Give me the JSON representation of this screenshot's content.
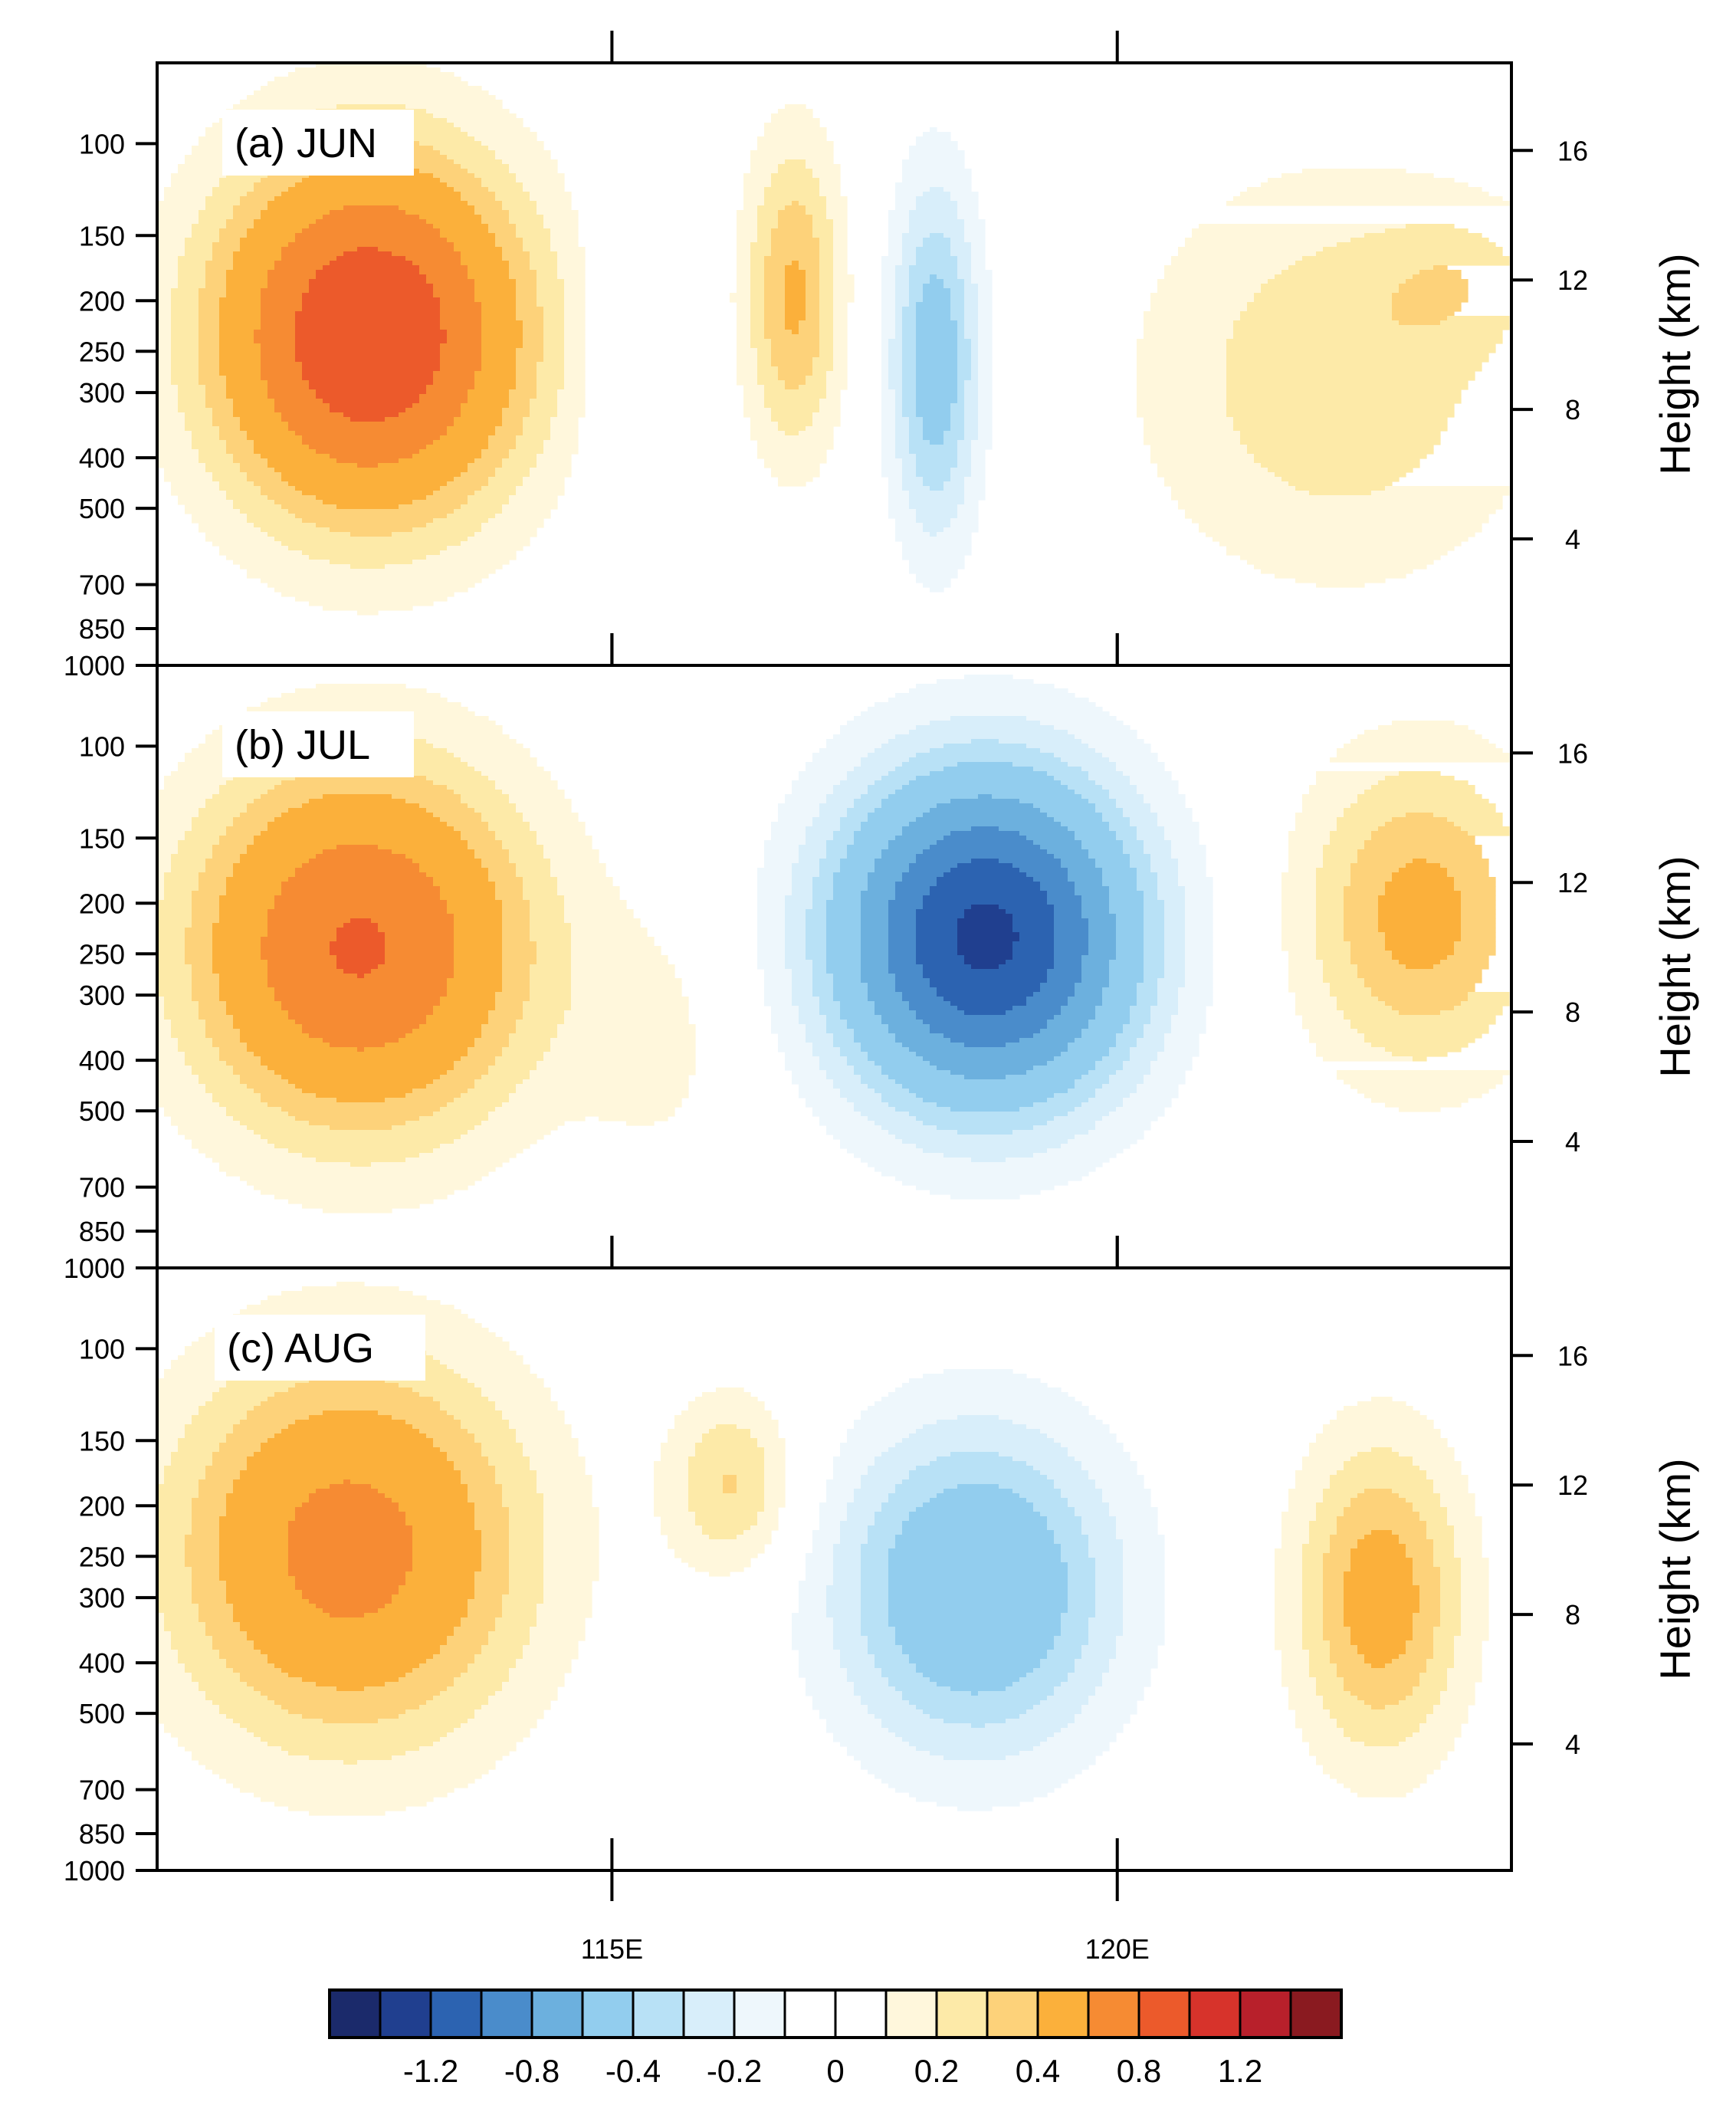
{
  "chart_data": {
    "type": "contour",
    "x_range": [
      110.5,
      123.9
    ],
    "x_ticks": [
      {
        "value": 115,
        "label": "115E"
      },
      {
        "value": 120,
        "label": "120E"
      }
    ],
    "pressure_ticks": [
      {
        "value": 100,
        "label": "100"
      },
      {
        "value": 150,
        "label": "150"
      },
      {
        "value": 200,
        "label": "200"
      },
      {
        "value": 250,
        "label": "250"
      },
      {
        "value": 300,
        "label": "300"
      },
      {
        "value": 400,
        "label": "400"
      },
      {
        "value": 500,
        "label": "500"
      },
      {
        "value": 700,
        "label": "700"
      },
      {
        "value": 850,
        "label": "850"
      },
      {
        "value": 1000,
        "label": "1000"
      }
    ],
    "height_ticks": [
      {
        "value": 4,
        "label": "4"
      },
      {
        "value": 8,
        "label": "8"
      },
      {
        "value": 12,
        "label": "12"
      },
      {
        "value": 16,
        "label": "16"
      }
    ],
    "right_axis_label": "Height (km)",
    "contour_levels": [
      -1.4,
      -1.2,
      -1.0,
      -0.8,
      -0.6,
      -0.4,
      -0.3,
      -0.2,
      -0.1,
      0,
      0.1,
      0.2,
      0.3,
      0.4,
      0.6,
      0.8,
      1.0,
      1.2,
      1.4
    ],
    "colors": [
      "#1b2a6b",
      "#203f8f",
      "#2c63b1",
      "#4a8ccb",
      "#6cb0de",
      "#92cdee",
      "#b8e1f6",
      "#d8eefa",
      "#eef7fc",
      "#ffffff",
      "#ffffff",
      "#fff7dc",
      "#fdeaa8",
      "#fdd27a",
      "#fbb03b",
      "#f68b33",
      "#ec5a2b",
      "#d7332b",
      "#b8202b",
      "#8a1a20"
    ],
    "colorbar": {
      "tick_labels": [
        "-1.2",
        "-0.8",
        "-0.4",
        "-0.2",
        "0",
        "0.2",
        "0.4",
        "0.8",
        "1.2"
      ]
    },
    "panels": [
      {
        "label": "(a) JUN",
        "features": [
          {
            "lon": 112.6,
            "height_km": 10.3,
            "amplitude": 1.0,
            "lon_sigma": 1.1,
            "height_sigma": 4.0
          },
          {
            "lon": 116.8,
            "height_km": 11.5,
            "amplitude": 0.42,
            "lon_sigma": 0.35,
            "height_sigma": 3.5
          },
          {
            "lon": 118.2,
            "height_km": 9.5,
            "amplitude": -0.5,
            "lon_sigma": 0.33,
            "height_sigma": 4.0
          },
          {
            "lon": 115.2,
            "height_km": 10.0,
            "amplitude": -0.15,
            "lon_sigma": 0.3,
            "height_sigma": 4.5
          },
          {
            "lon": 122.2,
            "height_km": 9.0,
            "amplitude": 0.28,
            "lon_sigma": 1.4,
            "height_sigma": 4.5
          },
          {
            "lon": 123.4,
            "height_km": 12.0,
            "amplitude": 0.15,
            "lon_sigma": 0.6,
            "height_sigma": 1.5
          }
        ]
      },
      {
        "label": "(b) JUL",
        "features": [
          {
            "lon": 112.5,
            "height_km": 10.0,
            "amplitude": 0.82,
            "lon_sigma": 1.2,
            "height_sigma": 4.0
          },
          {
            "lon": 118.7,
            "height_km": 10.3,
            "amplitude": -1.25,
            "lon_sigma": 1.05,
            "height_sigma": 3.6
          },
          {
            "lon": 123.0,
            "height_km": 11.0,
            "amplitude": 0.45,
            "lon_sigma": 0.85,
            "height_sigma": 3.5
          },
          {
            "lon": 115.5,
            "height_km": 7.0,
            "amplitude": 0.12,
            "lon_sigma": 0.6,
            "height_sigma": 3.0
          }
        ]
      },
      {
        "label": "(c) AUG",
        "features": [
          {
            "lon": 112.4,
            "height_km": 10.0,
            "amplitude": 0.68,
            "lon_sigma": 1.25,
            "height_sigma": 4.2
          },
          {
            "lon": 118.6,
            "height_km": 8.8,
            "amplitude": -0.6,
            "lon_sigma": 1.0,
            "height_sigma": 3.6
          },
          {
            "lon": 116.2,
            "height_km": 12.0,
            "amplitude": 0.32,
            "lon_sigma": 0.45,
            "height_sigma": 2.0
          },
          {
            "lon": 122.6,
            "height_km": 8.5,
            "amplitude": 0.48,
            "lon_sigma": 0.6,
            "height_sigma": 3.5
          }
        ]
      }
    ]
  }
}
